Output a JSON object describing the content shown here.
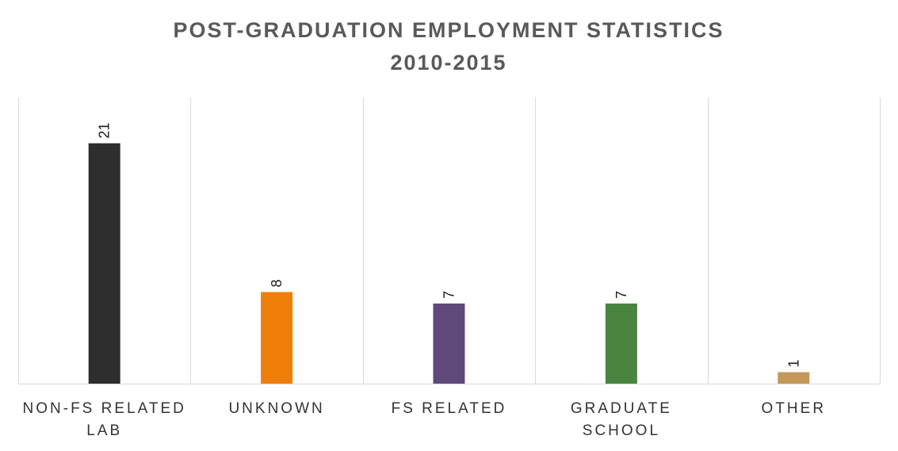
{
  "chart_data": {
    "type": "bar",
    "title": [
      "POST-GRADUATION  EMPLOYMENT  STATISTICS",
      "2010-2015"
    ],
    "categories": [
      [
        "NON-FS RELATED",
        "LAB"
      ],
      [
        "UNKNOWN"
      ],
      [
        "FS RELATED"
      ],
      [
        "GRADUATE",
        "SCHOOL"
      ],
      [
        "OTHER"
      ]
    ],
    "values": [
      21,
      8,
      7,
      7,
      1
    ],
    "colors": [
      "#2e2e2e",
      "#f07f09",
      "#5f497a",
      "#4a8540",
      "#c4975a"
    ],
    "data_labels": [
      "21",
      "8",
      "7",
      "7",
      "1"
    ],
    "ylim": [
      0,
      25
    ],
    "gridlines": "vertical separators between categories",
    "legend": "none",
    "xlabel": "",
    "ylabel": ""
  }
}
